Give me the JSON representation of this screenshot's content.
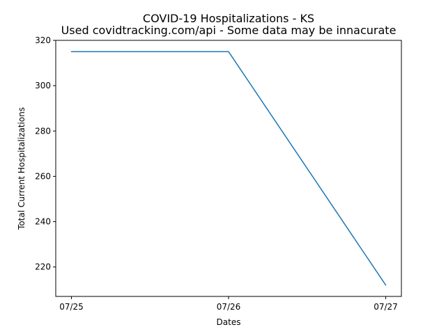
{
  "chart_data": {
    "type": "line",
    "title": "COVID-19 Hospitalizations - KS",
    "subtitle": "Used covidtracking.com/api - Some data may be innacurate",
    "xlabel": "Dates",
    "ylabel": "Total Current Hospitalizations",
    "categories": [
      "07/25",
      "07/26",
      "07/27"
    ],
    "series": [
      {
        "values": [
          315,
          315,
          212
        ]
      }
    ],
    "ylim": [
      207,
      320
    ],
    "yticks": [
      220,
      240,
      260,
      280,
      300,
      320
    ],
    "grid": false,
    "line_color": "#1f77b4"
  }
}
